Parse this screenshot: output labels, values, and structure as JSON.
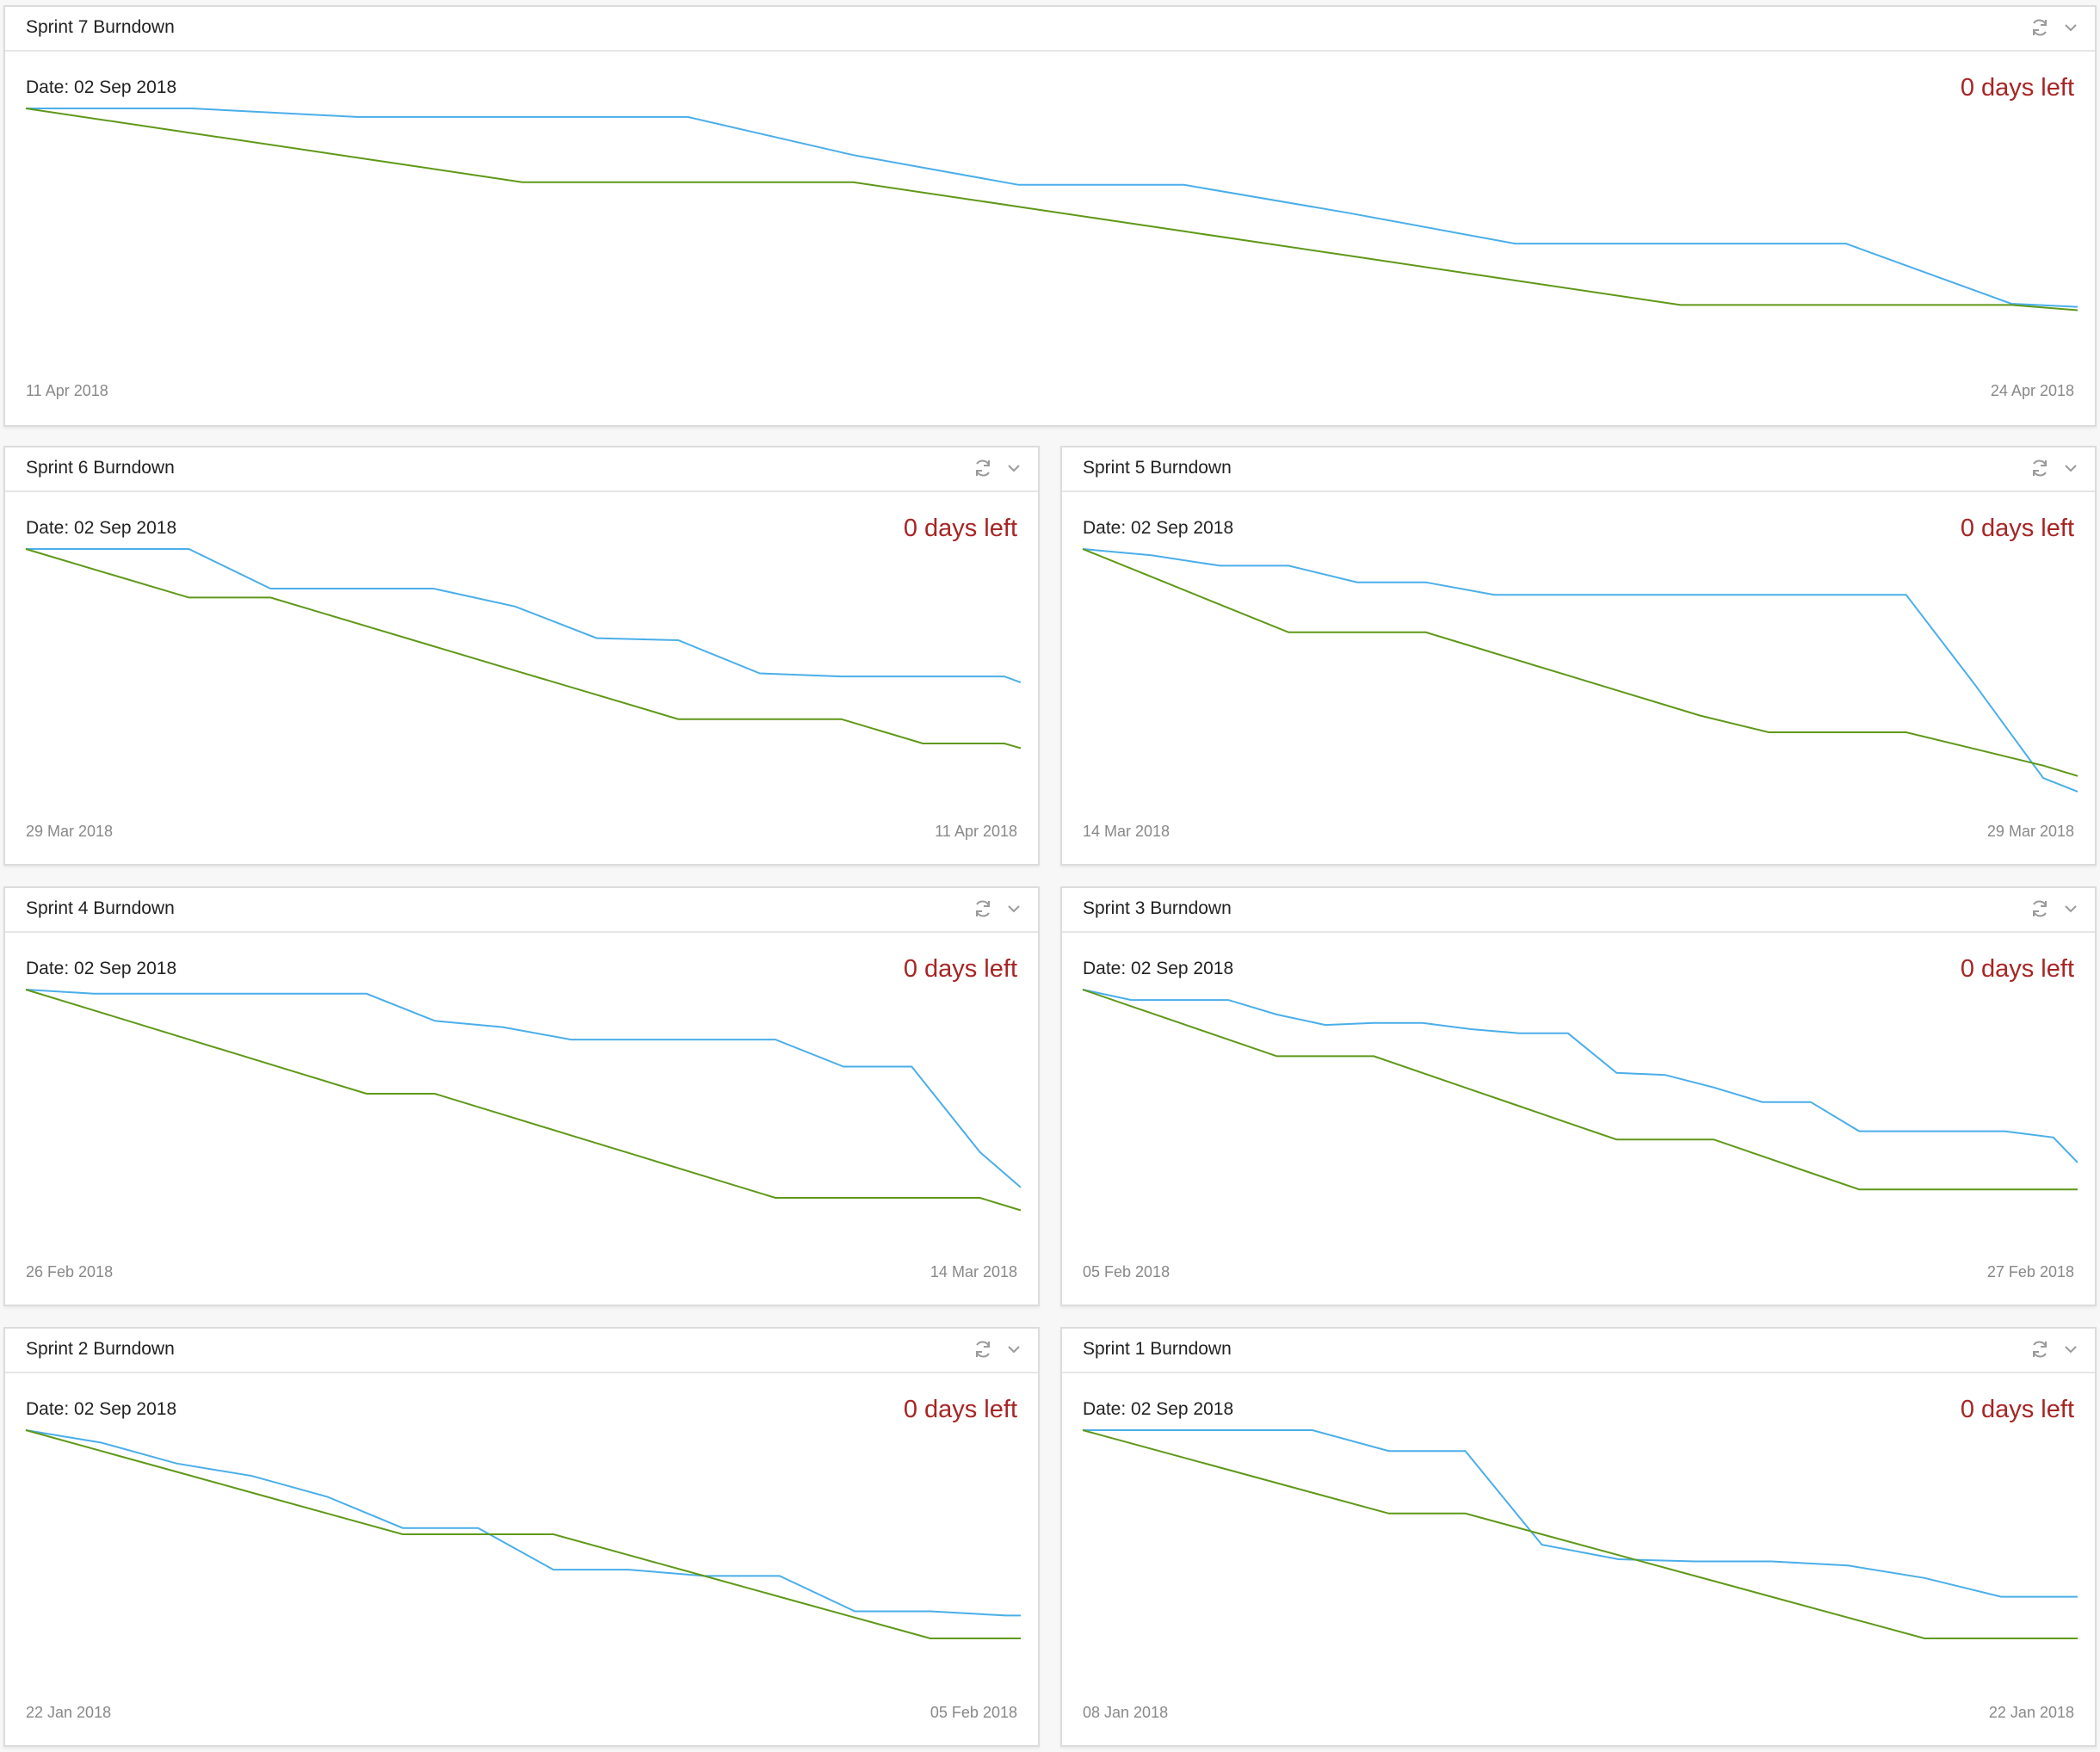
{
  "panels": [
    {
      "title": "Sprint 7 Burndown",
      "date_label": "Date: 02 Sep 2018",
      "days_left": "0 days left",
      "start_date": "11 Apr 2018",
      "end_date": "24 Apr 2018",
      "chart_data": {
        "type": "line",
        "series": [
          {
            "color": "#4aaeea",
            "x": [
              0,
              1,
              2,
              3,
              4,
              5,
              6,
              7,
              8,
              9,
              10,
              11,
              12,
              12.4
            ],
            "y": [
              1.0,
              1.0,
              0.959,
              0.959,
              0.959,
              0.776,
              0.633,
              0.633,
              0.497,
              0.351,
              0.351,
              0.351,
              0.062,
              0.047
            ]
          },
          {
            "color": "#5f9818",
            "x": [
              0,
              1,
              2,
              3,
              4,
              5,
              6,
              7,
              8,
              9,
              10,
              11,
              12,
              12.4
            ],
            "y": [
              1.0,
              0.882,
              0.764,
              0.646,
              0.646,
              0.646,
              0.528,
              0.41,
              0.292,
              0.174,
              0.056,
              0.056,
              0.056,
              0.031
            ]
          }
        ]
      }
    },
    {
      "title": "Sprint 6 Burndown",
      "date_label": "Date: 02 Sep 2018",
      "days_left": "0 days left",
      "start_date": "29 Mar 2018",
      "end_date": "11 Apr 2018",
      "chart_data": {
        "type": "line",
        "series": [
          {
            "color": "#4aaeea",
            "x": [
              0,
              1,
              2,
              3,
              4,
              5,
              6,
              7,
              8,
              9,
              10,
              11,
              12,
              12.2
            ],
            "y": [
              1.0,
              1.0,
              1.0,
              0.81,
              0.81,
              0.81,
              0.724,
              0.572,
              0.562,
              0.403,
              0.388,
              0.388,
              0.388,
              0.359
            ]
          },
          {
            "color": "#5f9818",
            "x": [
              0,
              1,
              2,
              3,
              4,
              5,
              6,
              7,
              8,
              9,
              10,
              11,
              12,
              12.2
            ],
            "y": [
              1.0,
              0.883,
              0.767,
              0.767,
              0.65,
              0.533,
              0.416,
              0.3,
              0.183,
              0.183,
              0.183,
              0.066,
              0.066,
              0.044
            ]
          }
        ]
      }
    },
    {
      "title": "Sprint 5 Burndown",
      "date_label": "Date: 02 Sep 2018",
      "days_left": "0 days left",
      "start_date": "14 Mar 2018",
      "end_date": "29 Mar 2018",
      "chart_data": {
        "type": "line",
        "series": [
          {
            "color": "#4aaeea",
            "x": [
              0,
              1,
              2,
              3,
              4,
              5,
              6,
              7,
              8,
              9,
              10,
              11,
              12,
              13,
              14,
              14.5
            ],
            "y": [
              1.0,
              0.97,
              0.92,
              0.92,
              0.84,
              0.84,
              0.78,
              0.78,
              0.78,
              0.78,
              0.78,
              0.78,
              0.78,
              0.35,
              -0.1,
              -0.3
            ]
          },
          {
            "color": "#5f9818",
            "x": [
              0,
              1,
              2,
              3,
              4,
              5,
              6,
              7,
              8,
              9,
              10,
              11,
              12,
              13,
              14,
              14.5
            ],
            "y": [
              1.0,
              0.867,
              0.733,
              0.6,
              0.6,
              0.6,
              0.5,
              0.4,
              0.3,
              0.2,
              0.12,
              0.12,
              0.12,
              0.04,
              -0.04,
              -0.09
            ]
          }
        ]
      }
    },
    {
      "title": "Sprint 4 Burndown",
      "date_label": "Date: 02 Sep 2018",
      "days_left": "0 days left",
      "start_date": "26 Feb 2018",
      "end_date": "14 Mar 2018",
      "chart_data": {
        "type": "line",
        "series": [
          {
            "color": "#4aaeea",
            "x": [
              0,
              1,
              2,
              3,
              4,
              5,
              6,
              7,
              8,
              9,
              10,
              11,
              12,
              13,
              14,
              14.6
            ],
            "y": [
              1.0,
              0.98,
              0.98,
              0.98,
              0.98,
              0.98,
              0.85,
              0.82,
              0.76,
              0.76,
              0.76,
              0.76,
              0.63,
              0.63,
              0.22,
              0.05
            ]
          },
          {
            "color": "#5f9818",
            "x": [
              0,
              1,
              2,
              3,
              4,
              5,
              6,
              7,
              8,
              9,
              10,
              11,
              12,
              13,
              14,
              14.6
            ],
            "y": [
              1.0,
              0.9,
              0.8,
              0.7,
              0.6,
              0.5,
              0.5,
              0.4,
              0.3,
              0.2,
              0.1,
              0.0,
              0.0,
              0.0,
              0.0,
              -0.06
            ]
          }
        ]
      }
    },
    {
      "title": "Sprint 3 Burndown",
      "date_label": "Date: 02 Sep 2018",
      "days_left": "0 days left",
      "start_date": "05 Feb 2018",
      "end_date": "27 Feb 2018",
      "chart_data": {
        "type": "line",
        "series": [
          {
            "color": "#4aaeea",
            "x": [
              0,
              1,
              2,
              3,
              4,
              5,
              6,
              7,
              8,
              9,
              10,
              11,
              12,
              13,
              14,
              15,
              16,
              17,
              18,
              19,
              20,
              20.5
            ],
            "y": [
              1.0,
              0.95,
              0.95,
              0.95,
              0.88,
              0.83,
              0.84,
              0.84,
              0.81,
              0.79,
              0.79,
              0.6,
              0.59,
              0.53,
              0.46,
              0.46,
              0.32,
              0.32,
              0.32,
              0.32,
              0.29,
              0.17
            ]
          },
          {
            "color": "#5f9818",
            "x": [
              0,
              1,
              2,
              3,
              4,
              5,
              6,
              7,
              8,
              9,
              10,
              11,
              12,
              13,
              14,
              15,
              16,
              17,
              18,
              19,
              20,
              20.5
            ],
            "y": [
              1.0,
              0.92,
              0.84,
              0.76,
              0.68,
              0.68,
              0.68,
              0.6,
              0.52,
              0.44,
              0.36,
              0.28,
              0.28,
              0.28,
              0.2,
              0.12,
              0.04,
              0.04,
              0.04,
              0.04,
              0.04,
              0.04
            ]
          }
        ]
      }
    },
    {
      "title": "Sprint 2 Burndown",
      "date_label": "Date: 02 Sep 2018",
      "days_left": "0 days left",
      "start_date": "22 Jan 2018",
      "end_date": "05 Feb 2018",
      "chart_data": {
        "type": "line",
        "series": [
          {
            "color": "#4aaeea",
            "x": [
              0,
              1,
              2,
              3,
              4,
              5,
              6,
              7,
              8,
              9,
              10,
              11,
              12,
              13,
              13.2
            ],
            "y": [
              1.0,
              0.94,
              0.84,
              0.78,
              0.68,
              0.53,
              0.53,
              0.33,
              0.33,
              0.3,
              0.3,
              0.13,
              0.13,
              0.11,
              0.11
            ]
          },
          {
            "color": "#5f9818",
            "x": [
              0,
              1,
              2,
              3,
              4,
              5,
              6,
              7,
              8,
              9,
              10,
              11,
              12,
              13,
              13.2
            ],
            "y": [
              1.0,
              0.9,
              0.8,
              0.7,
              0.6,
              0.5,
              0.5,
              0.5,
              0.4,
              0.3,
              0.2,
              0.1,
              0.0,
              0.0,
              0.0
            ]
          }
        ]
      }
    },
    {
      "title": "Sprint 1 Burndown",
      "date_label": "Date: 02 Sep 2018",
      "days_left": "0 days left",
      "start_date": "08 Jan 2018",
      "end_date": "22 Jan 2018",
      "chart_data": {
        "type": "line",
        "series": [
          {
            "color": "#4aaeea",
            "x": [
              0,
              1,
              2,
              3,
              4,
              5,
              6,
              7,
              8,
              9,
              10,
              11,
              12,
              13
            ],
            "y": [
              1.0,
              1.0,
              1.0,
              1.0,
              0.9,
              0.9,
              0.45,
              0.38,
              0.37,
              0.37,
              0.35,
              0.29,
              0.2,
              0.2
            ]
          },
          {
            "color": "#5f9818",
            "x": [
              0,
              1,
              2,
              3,
              4,
              5,
              6,
              7,
              8,
              9,
              10,
              11,
              12,
              13
            ],
            "y": [
              1.0,
              0.9,
              0.8,
              0.7,
              0.6,
              0.6,
              0.5,
              0.4,
              0.3,
              0.2,
              0.1,
              0.0,
              0.0,
              0.0
            ]
          }
        ]
      }
    }
  ]
}
